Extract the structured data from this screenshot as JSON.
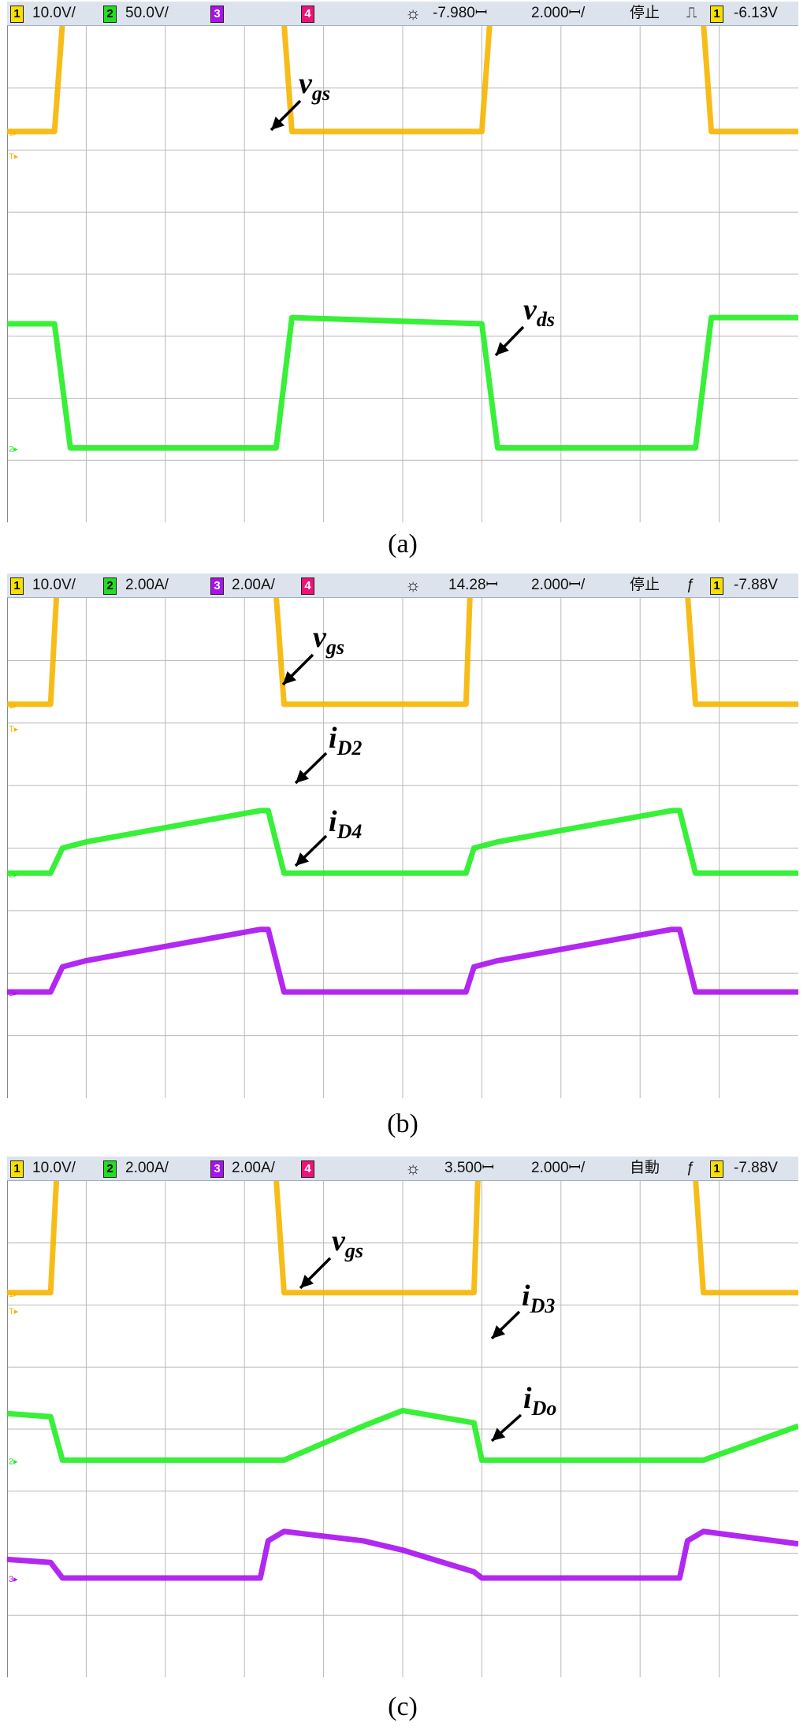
{
  "panels": [
    {
      "caption": "(a)",
      "status": {
        "ch1_num": "1",
        "ch1_scale": "10.0V/",
        "ch2_num": "2",
        "ch2_scale": "50.0V/",
        "ch3_num": "3",
        "ch3_scale": "",
        "ch4_num": "4",
        "delay": "-7.980ꟷ",
        "timebase": "2.000ꟷ/",
        "mode": "停止",
        "trig_symbol": "⎍",
        "trig_ch": "1",
        "trig_level": "-6.13V"
      }
    },
    {
      "caption": "(b)",
      "status": {
        "ch1_num": "1",
        "ch1_scale": "10.0V/",
        "ch2_num": "2",
        "ch2_scale": "2.00A/",
        "ch3_num": "3",
        "ch3_scale": "2.00A/",
        "ch4_num": "4",
        "delay": "14.28ꟷ",
        "timebase": "2.000ꟷ/",
        "mode": "停止",
        "trig_symbol": "ƒ",
        "trig_ch": "1",
        "trig_level": "-7.88V"
      }
    },
    {
      "caption": "(c)",
      "status": {
        "ch1_num": "1",
        "ch1_scale": "10.0V/",
        "ch2_num": "2",
        "ch2_scale": "2.00A/",
        "ch3_num": "3",
        "ch3_scale": "2.00A/",
        "ch4_num": "4",
        "delay": "3.500ꟷ",
        "timebase": "2.000ꟷ/",
        "mode": "自動",
        "trig_symbol": "ƒ",
        "trig_ch": "1",
        "trig_level": "-7.88V"
      }
    }
  ],
  "colors": {
    "ch1": "#f7b500",
    "ch2": "#22ee22",
    "ch3": "#aa11ee",
    "ch4": "#ee1177",
    "grid": "#b8b8b8"
  },
  "chart_data": [
    {
      "type": "line",
      "time_per_div_us": 2.0,
      "divisions_x": 10,
      "x": [
        0,
        0.6,
        0.8,
        1.1,
        3.3,
        3.4,
        3.6,
        6.0,
        6.2,
        6.5,
        8.6,
        8.7,
        8.9,
        10.0
      ],
      "series": [
        {
          "name": "v_gs",
          "channel": 1,
          "ground_div": 6.3,
          "values": [
            0,
            0,
            3.5,
            3.5,
            3.5,
            3.5,
            0,
            0,
            3.5,
            3.5,
            3.5,
            3.5,
            0,
            0
          ]
        },
        {
          "name": "v_ds",
          "channel": 2,
          "ground_div": 1.2,
          "values": [
            2.0,
            2.0,
            0,
            0,
            0,
            0,
            2.1,
            2.0,
            0,
            0,
            0,
            0,
            2.1,
            2.1
          ]
        }
      ],
      "annotations": [
        {
          "text": "v",
          "sub": "gs"
        },
        {
          "text": "v",
          "sub": "ds"
        }
      ]
    },
    {
      "type": "line",
      "time_per_div_us": 2.0,
      "divisions_x": 10,
      "x": [
        0,
        0.55,
        0.7,
        1.0,
        3.2,
        3.3,
        3.5,
        5.8,
        5.9,
        6.2,
        8.4,
        8.5,
        8.7,
        10.0
      ],
      "series": [
        {
          "name": "v_gs",
          "channel": 1,
          "ground_div": 6.3,
          "values": [
            0,
            0,
            3.5,
            3.5,
            3.5,
            3.5,
            0,
            0,
            3.5,
            3.5,
            3.5,
            3.5,
            0,
            0
          ]
        },
        {
          "name": "i_D2",
          "channel": 2,
          "ground_div": 3.6,
          "values": [
            0,
            0,
            0.4,
            0.5,
            1.0,
            1.0,
            0,
            0,
            0.4,
            0.5,
            1.0,
            1.0,
            0,
            0
          ]
        },
        {
          "name": "i_D4",
          "channel": 3,
          "ground_div": 1.7,
          "values": [
            0,
            0,
            0.4,
            0.5,
            1.0,
            1.0,
            0,
            0,
            0.4,
            0.5,
            1.0,
            1.0,
            0,
            0
          ]
        }
      ],
      "annotations": [
        {
          "text": "v",
          "sub": "gs"
        },
        {
          "text": "i",
          "sub": "D2"
        },
        {
          "text": "i",
          "sub": "D4"
        }
      ]
    },
    {
      "type": "line",
      "time_per_div_us": 2.0,
      "divisions_x": 10,
      "x": [
        0,
        0.55,
        0.7,
        1.0,
        3.2,
        3.3,
        3.5,
        4.5,
        5.0,
        5.9,
        6.0,
        6.3,
        8.5,
        8.6,
        8.8,
        10.0
      ],
      "series": [
        {
          "name": "v_gs",
          "channel": 1,
          "ground_div": 6.2,
          "values": [
            0,
            0,
            3.7,
            3.7,
            3.7,
            3.7,
            0,
            0,
            0,
            0,
            3.7,
            3.7,
            3.7,
            3.7,
            0,
            0
          ]
        },
        {
          "name": "i_D3",
          "channel": 2,
          "ground_div": 3.5,
          "values": [
            0.75,
            0.7,
            0,
            0,
            0,
            0,
            0,
            0.55,
            0.8,
            0.6,
            0,
            0,
            0,
            0,
            0,
            0.55
          ]
        },
        {
          "name": "i_Do",
          "channel": 3,
          "ground_div": 1.6,
          "values": [
            0.3,
            0.25,
            0,
            0,
            0,
            0.6,
            0.75,
            0.6,
            0.45,
            0.1,
            0,
            0,
            0,
            0.6,
            0.75,
            0.55
          ]
        }
      ],
      "annotations": [
        {
          "text": "v",
          "sub": "gs"
        },
        {
          "text": "i",
          "sub": "D3"
        },
        {
          "text": "i",
          "sub": "Do"
        }
      ]
    }
  ]
}
